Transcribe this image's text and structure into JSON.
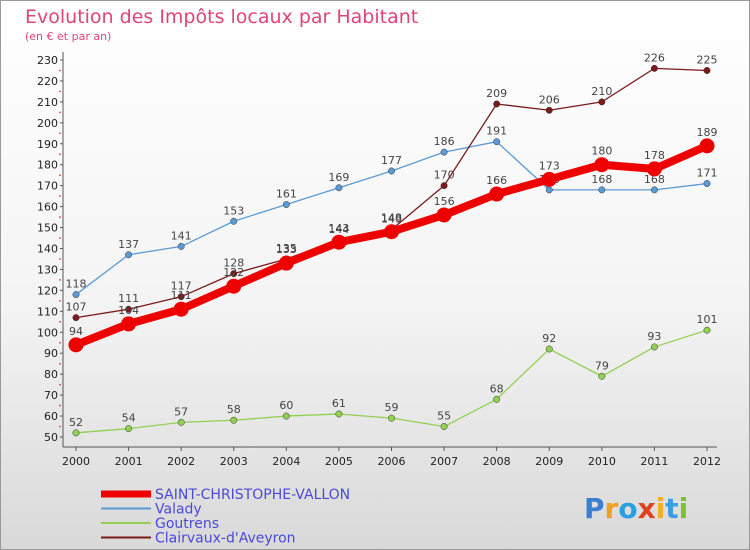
{
  "chart_data": {
    "type": "line",
    "title": "Evolution des Impôts locaux par Habitant",
    "subtitle": "(en € et par an)",
    "xlabel": "",
    "ylabel": "",
    "x": [
      "2000",
      "2001",
      "2002",
      "2003",
      "2004",
      "2005",
      "2006",
      "2007",
      "2008",
      "2009",
      "2010",
      "2011",
      "2012"
    ],
    "ylim": [
      50,
      230
    ],
    "yticks": [
      50,
      60,
      70,
      80,
      90,
      100,
      110,
      120,
      130,
      140,
      150,
      160,
      170,
      180,
      190,
      200,
      210,
      220,
      230
    ],
    "grid": false,
    "legend_position": "bottom-left",
    "series": [
      {
        "name": "SAINT-CHRISTOPHE-VALLON",
        "color": "#ee0000",
        "values": [
          94,
          104,
          111,
          122,
          133,
          143,
          148,
          156,
          166,
          173,
          180,
          178,
          189
        ]
      },
      {
        "name": "Valady",
        "color": "#5b9bd5",
        "values": [
          118,
          137,
          141,
          153,
          161,
          169,
          177,
          186,
          191,
          168,
          168,
          168,
          171
        ]
      },
      {
        "name": "Goutrens",
        "color": "#92d050",
        "values": [
          52,
          54,
          57,
          58,
          60,
          61,
          59,
          55,
          68,
          92,
          79,
          93,
          101
        ]
      },
      {
        "name": "Clairvaux-d'Aveyron",
        "color": "#7a1a1a",
        "values": [
          107,
          111,
          117,
          128,
          135,
          144,
          149,
          170,
          209,
          206,
          210,
          226,
          225
        ]
      }
    ]
  },
  "logo": {
    "text": "Proxiti"
  }
}
